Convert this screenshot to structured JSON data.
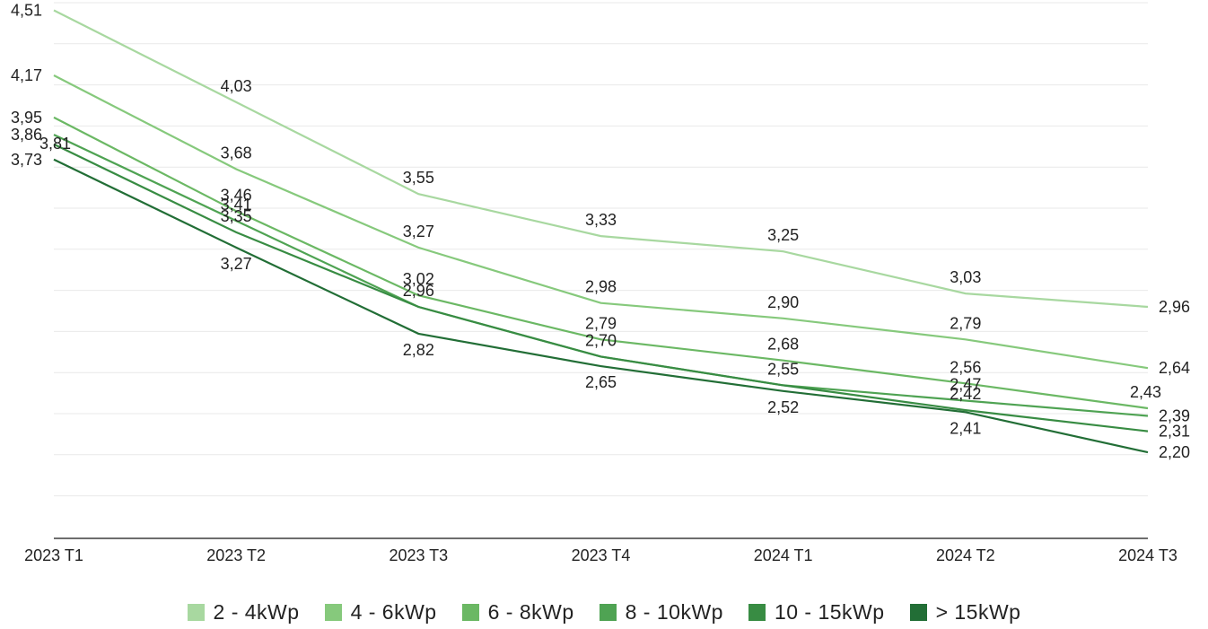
{
  "chart_data": {
    "type": "line",
    "categories": [
      "2023 T1",
      "2023 T2",
      "2023 T3",
      "2023 T4",
      "2024 T1",
      "2024 T2",
      "2024 T3"
    ],
    "series": [
      {
        "name": "2 - 4kWp",
        "color": "#a8d8a0",
        "values": [
          4.51,
          4.03,
          3.55,
          3.33,
          3.25,
          3.03,
          2.96
        ],
        "labels": [
          "4,51",
          "4,03",
          "3,55",
          "3,33",
          "3,25",
          "3,03",
          "2,96"
        ]
      },
      {
        "name": "4 - 6kWp",
        "color": "#86c97c",
        "values": [
          4.17,
          3.68,
          3.27,
          2.98,
          2.9,
          2.79,
          2.64
        ],
        "labels": [
          "4,17",
          "3,68",
          "3,27",
          "2,98",
          "2,90",
          "2,79",
          "2,64"
        ]
      },
      {
        "name": "6 - 8kWp",
        "color": "#6bb864",
        "values": [
          3.95,
          3.46,
          3.02,
          2.79,
          2.68,
          2.56,
          2.43
        ],
        "labels": [
          "3,95",
          "3,46",
          "3,02",
          "2,79",
          "2,68",
          "2,56",
          "2,43"
        ]
      },
      {
        "name": "8 - 10kWp",
        "color": "#4fa353",
        "values": [
          3.86,
          3.41,
          2.96,
          2.7,
          2.55,
          2.47,
          2.39
        ],
        "labels": [
          "3,86",
          "3,41",
          "2,96",
          "2,70",
          "2,55",
          "2,47",
          "2,39"
        ]
      },
      {
        "name": "10 - 15kWp",
        "color": "#388c43",
        "values": [
          3.81,
          3.35,
          2.96,
          2.7,
          2.55,
          2.42,
          2.31
        ],
        "labels": [
          "3,81",
          "3,35",
          "",
          "",
          "",
          "2,42",
          "2,31"
        ]
      },
      {
        "name": "> 15kWp",
        "color": "#226e36",
        "values": [
          3.73,
          3.27,
          2.82,
          2.65,
          2.52,
          2.41,
          2.2
        ],
        "labels": [
          "3,73",
          "3,27",
          "2,82",
          "2,65",
          "2,52",
          "2,41",
          "2,20"
        ]
      }
    ],
    "ylim": [
      1.75,
      4.55
    ],
    "grid": true,
    "legend_position": "bottom"
  }
}
